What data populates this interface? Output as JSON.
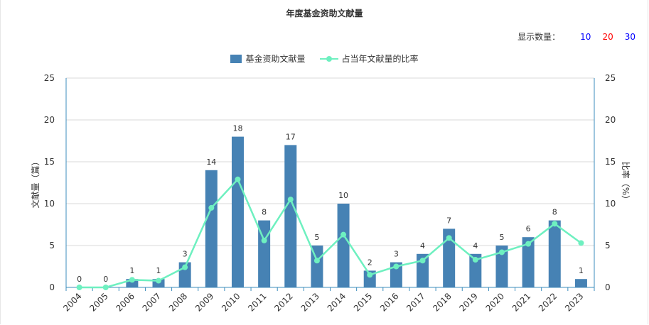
{
  "chart_data": {
    "type": "bar",
    "title": "年度基金资助文献量",
    "categories": [
      "2004",
      "2005",
      "2006",
      "2007",
      "2008",
      "2009",
      "2010",
      "2011",
      "2012",
      "2013",
      "2014",
      "2015",
      "2016",
      "2017",
      "2018",
      "2019",
      "2020",
      "2021",
      "2022",
      "2023"
    ],
    "series": [
      {
        "name": "基金资助文献量",
        "type": "bar",
        "axis": "left",
        "color": "#4682b4",
        "values": [
          0,
          0,
          1,
          1,
          3,
          14,
          18,
          8,
          17,
          5,
          10,
          2,
          3,
          4,
          7,
          4,
          5,
          6,
          8,
          1
        ]
      },
      {
        "name": "占当年文献量的比率",
        "type": "line",
        "axis": "right",
        "color": "#6ef0c0",
        "values": [
          0.0,
          0.0,
          0.9,
          0.8,
          2.4,
          9.5,
          12.9,
          5.6,
          10.5,
          3.2,
          6.3,
          1.5,
          2.5,
          3.2,
          5.9,
          3.3,
          4.2,
          5.2,
          7.6,
          5.3
        ]
      }
    ],
    "ylabel_left": "文献量（篇）",
    "ylabel_right": "比率（%）",
    "ylim_left": [
      0,
      25
    ],
    "ylim_right": [
      0,
      25
    ],
    "yticks": [
      "0",
      "5",
      "10",
      "15",
      "20",
      "25"
    ],
    "grid": true,
    "legend_position": "top-center"
  },
  "controls": {
    "page_size_label": "显示数量：",
    "page_size_options": [
      {
        "label": "10",
        "color": "#0000ff"
      },
      {
        "label": "20",
        "color": "#ff0000"
      },
      {
        "label": "30",
        "color": "#0000ff"
      }
    ]
  }
}
